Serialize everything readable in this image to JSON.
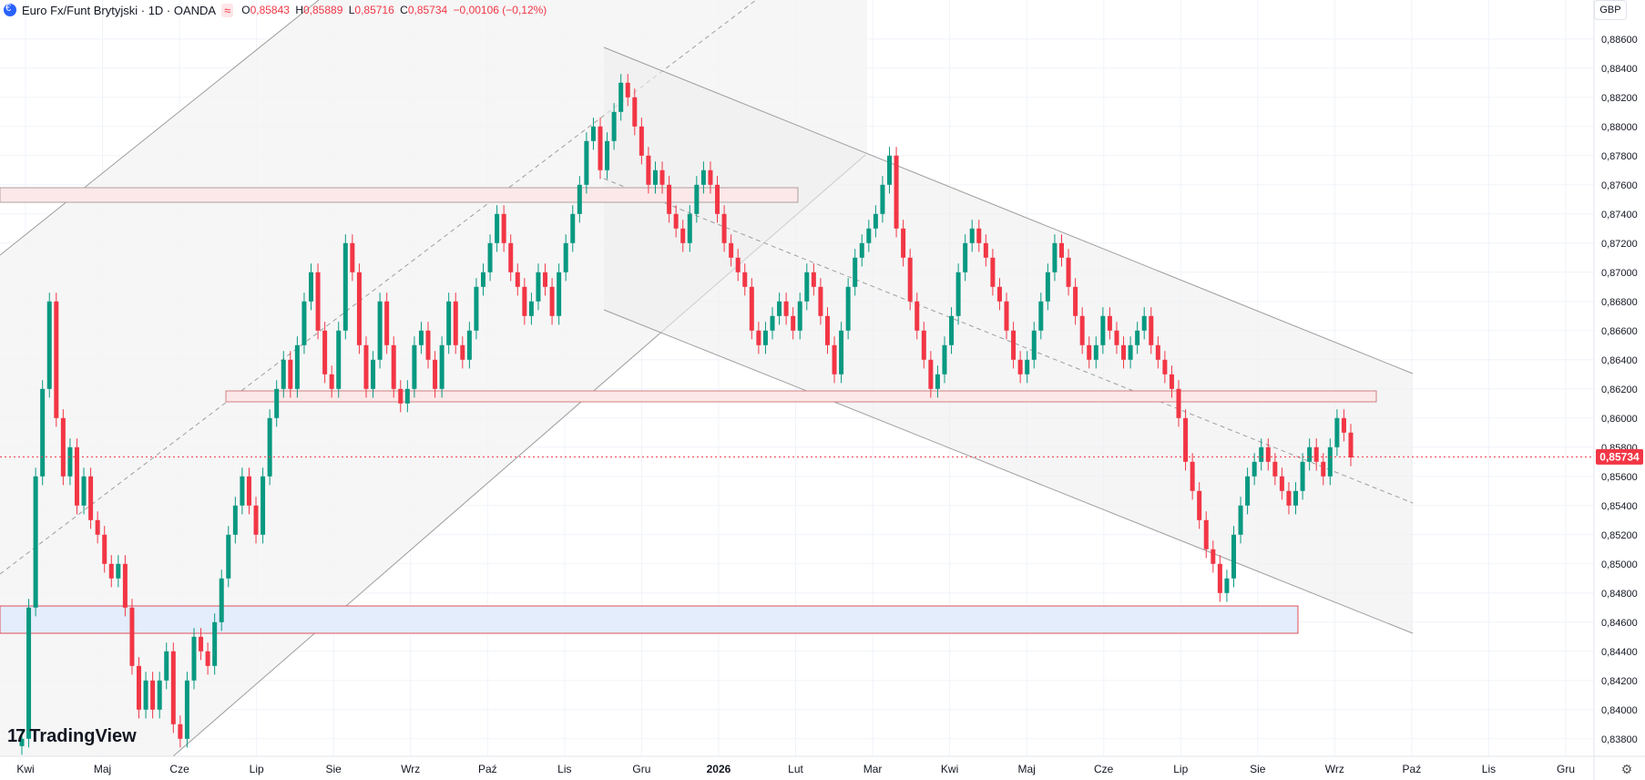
{
  "header": {
    "symbol_title": "Euro Fx/Funt Brytyjski · 1D · OANDA",
    "wave_icon": "≈",
    "ohlc": [
      {
        "key": "O",
        "value": "0,85843"
      },
      {
        "key": "H",
        "value": "0,85889"
      },
      {
        "key": "L",
        "value": "0,85716"
      },
      {
        "key": "C",
        "value": "0,85734"
      },
      {
        "key": "",
        "value": "−0,00106 (−0,12%)"
      }
    ]
  },
  "currency_button": "GBP",
  "logo_text": "TradingView",
  "colors": {
    "up": "#089981",
    "down": "#f23645",
    "grid": "#f0f3fa",
    "price_tag": "#f23645"
  },
  "chart_data": {
    "type": "candlestick",
    "x_ticks": [
      "Kwi",
      "Maj",
      "Cze",
      "Lip",
      "Sie",
      "Wrz",
      "Paź",
      "Lis",
      "Gru",
      "2026",
      "Lut",
      "Mar",
      "Kwi",
      "Maj",
      "Cze",
      "Lip",
      "Sie",
      "Wrz",
      "Paź",
      "Lis",
      "Gru"
    ],
    "y_ticks": [
      "0,88600",
      "0,88400",
      "0,88200",
      "0,88000",
      "0,87800",
      "0,87600",
      "0,87400",
      "0,87200",
      "0,87000",
      "0,86800",
      "0,86600",
      "0,86400",
      "0,86200",
      "0,86000",
      "0,85800",
      "0,85600",
      "0,85400",
      "0,85200",
      "0,85000",
      "0,84800",
      "0,84600",
      "0,84400",
      "0,84200",
      "0,84000",
      "0,83800"
    ],
    "ylim": [
      0.8368,
      0.8873
    ],
    "last_price": 0.85734,
    "last_price_label": "0,85734",
    "closes": [
      0.838,
      0.847,
      0.856,
      0.862,
      0.868,
      0.86,
      0.856,
      0.858,
      0.854,
      0.856,
      0.853,
      0.852,
      0.85,
      0.849,
      0.85,
      0.847,
      0.843,
      0.84,
      0.842,
      0.84,
      0.842,
      0.844,
      0.839,
      0.838,
      0.842,
      0.845,
      0.844,
      0.843,
      0.846,
      0.849,
      0.852,
      0.854,
      0.856,
      0.854,
      0.852,
      0.856,
      0.86,
      0.862,
      0.864,
      0.862,
      0.865,
      0.868,
      0.87,
      0.866,
      0.863,
      0.862,
      0.866,
      0.872,
      0.87,
      0.865,
      0.862,
      0.864,
      0.868,
      0.865,
      0.862,
      0.861,
      0.862,
      0.865,
      0.866,
      0.864,
      0.862,
      0.865,
      0.868,
      0.865,
      0.864,
      0.866,
      0.869,
      0.87,
      0.872,
      0.874,
      0.872,
      0.87,
      0.869,
      0.867,
      0.868,
      0.87,
      0.869,
      0.867,
      0.87,
      0.872,
      0.874,
      0.876,
      0.879,
      0.88,
      0.877,
      0.879,
      0.881,
      0.883,
      0.882,
      0.88,
      0.878,
      0.876,
      0.877,
      0.876,
      0.874,
      0.873,
      0.872,
      0.874,
      0.876,
      0.877,
      0.876,
      0.874,
      0.872,
      0.871,
      0.87,
      0.869,
      0.866,
      0.865,
      0.866,
      0.867,
      0.868,
      0.867,
      0.866,
      0.868,
      0.87,
      0.869,
      0.867,
      0.865,
      0.863,
      0.866,
      0.869,
      0.871,
      0.872,
      0.873,
      0.874,
      0.876,
      0.878,
      0.873,
      0.871,
      0.868,
      0.866,
      0.864,
      0.862,
      0.863,
      0.865,
      0.867,
      0.87,
      0.872,
      0.873,
      0.872,
      0.871,
      0.869,
      0.868,
      0.866,
      0.864,
      0.863,
      0.864,
      0.866,
      0.868,
      0.87,
      0.872,
      0.871,
      0.869,
      0.867,
      0.865,
      0.864,
      0.865,
      0.867,
      0.866,
      0.865,
      0.864,
      0.865,
      0.866,
      0.867,
      0.865,
      0.864,
      0.863,
      0.862,
      0.86,
      0.857,
      0.855,
      0.853,
      0.851,
      0.85,
      0.848,
      0.849,
      0.852,
      0.854,
      0.856,
      0.857,
      0.858,
      0.857,
      0.856,
      0.855,
      0.854,
      0.855,
      0.857,
      0.858,
      0.857,
      0.856,
      0.858,
      0.86,
      0.859,
      0.8573
    ]
  }
}
